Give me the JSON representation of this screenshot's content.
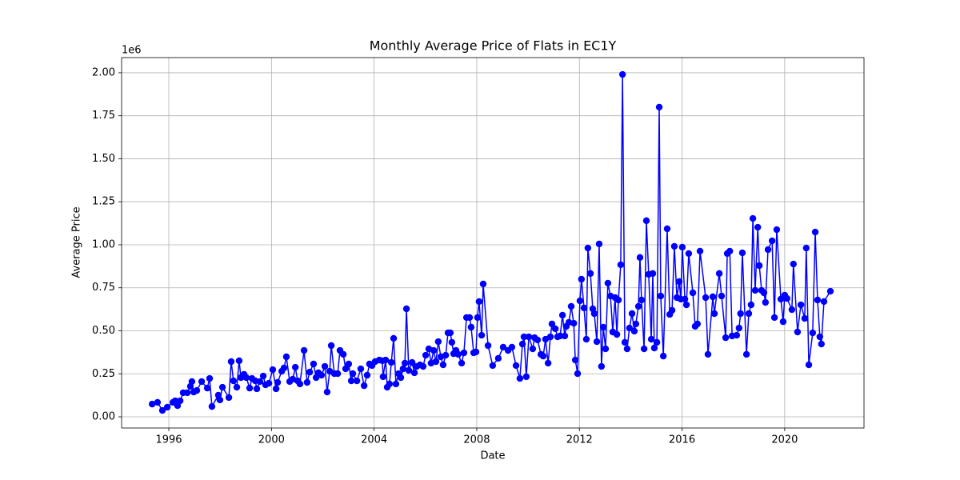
{
  "chart_data": {
    "type": "line",
    "title": "Monthly Average Price of Flats in EC1Y",
    "xlabel": "Date",
    "ylabel": "Average Price",
    "y_offset_label": "1e6",
    "color": "#0000ff",
    "grid": true,
    "xlim": [
      1994.16,
      2023.09
    ],
    "ylim": [
      -0.065,
      2.088
    ],
    "xticks": [
      1996,
      2000,
      2004,
      2008,
      2012,
      2016,
      2020
    ],
    "yticks": [
      {
        "value": 0,
        "label": "0.00"
      },
      0.25,
      {
        "value": 0.5,
        "label": "0.50"
      },
      0.75,
      {
        "value": 1,
        "label": "1.00"
      },
      1.25,
      {
        "value": 1.5,
        "label": "1.50"
      },
      1.75,
      {
        "value": 2,
        "label": "2.00"
      }
    ],
    "x": [
      1995.35,
      1995.56,
      1995.75,
      1995.94,
      1996.16,
      1996.25,
      1996.34,
      1996.44,
      1996.56,
      1996.72,
      1996.84,
      1996.9,
      1996.97,
      1997.09,
      1997.28,
      1997.5,
      1997.59,
      1997.68,
      1997.93,
      1997.99,
      1998.09,
      1998.34,
      1998.43,
      1998.52,
      1998.65,
      1998.74,
      1998.81,
      1998.93,
      1999.02,
      1999.15,
      1999.24,
      1999.37,
      1999.43,
      1999.55,
      1999.68,
      1999.77,
      1999.9,
      2000.05,
      2000.18,
      2000.24,
      2000.4,
      2000.49,
      2000.58,
      2000.71,
      2000.83,
      2000.93,
      2001.02,
      2001.11,
      2001.27,
      2001.39,
      2001.49,
      2001.64,
      2001.74,
      2001.83,
      2001.95,
      2002.08,
      2002.17,
      2002.27,
      2002.33,
      2002.45,
      2002.58,
      2002.67,
      2002.8,
      2002.89,
      2003.01,
      2003.11,
      2003.17,
      2003.33,
      2003.48,
      2003.61,
      2003.73,
      2003.82,
      2003.92,
      2004.04,
      2004.2,
      2004.32,
      2004.35,
      2004.45,
      2004.51,
      2004.6,
      2004.67,
      2004.76,
      2004.85,
      2004.95,
      2005.04,
      2005.13,
      2005.2,
      2005.26,
      2005.35,
      2005.48,
      2005.57,
      2005.66,
      2005.79,
      2005.91,
      2006.01,
      2006.13,
      2006.22,
      2006.32,
      2006.41,
      2006.5,
      2006.6,
      2006.69,
      2006.79,
      2006.88,
      2006.97,
      2007.03,
      2007.1,
      2007.19,
      2007.28,
      2007.41,
      2007.5,
      2007.6,
      2007.72,
      2007.78,
      2007.88,
      2007.97,
      2008.03,
      2008.09,
      2008.19,
      2008.25,
      2008.44,
      2008.62,
      2008.84,
      2009.03,
      2009.22,
      2009.37,
      2009.53,
      2009.68,
      2009.78,
      2009.84,
      2009.93,
      2010.03,
      2010.18,
      2010.25,
      2010.37,
      2010.5,
      2010.59,
      2010.68,
      2010.78,
      2010.87,
      2010.93,
      2011.06,
      2011.15,
      2011.25,
      2011.34,
      2011.43,
      2011.49,
      2011.59,
      2011.68,
      2011.78,
      2011.84,
      2011.93,
      2012.02,
      2012.08,
      2012.18,
      2012.27,
      2012.33,
      2012.43,
      2012.52,
      2012.58,
      2012.68,
      2012.77,
      2012.86,
      2012.93,
      2013.02,
      2013.11,
      2013.21,
      2013.3,
      2013.39,
      2013.46,
      2013.52,
      2013.61,
      2013.68,
      2013.77,
      2013.86,
      2013.95,
      2014.05,
      2014.14,
      2014.2,
      2014.3,
      2014.36,
      2014.42,
      2014.52,
      2014.61,
      2014.7,
      2014.8,
      2014.86,
      2014.92,
      2015.02,
      2015.11,
      2015.17,
      2015.27,
      2015.42,
      2015.52,
      2015.61,
      2015.7,
      2015.8,
      2015.89,
      2015.95,
      2016.01,
      2016.11,
      2016.17,
      2016.26,
      2016.42,
      2016.51,
      2016.6,
      2016.7,
      2016.92,
      2017.01,
      2017.2,
      2017.26,
      2017.45,
      2017.54,
      2017.7,
      2017.76,
      2017.86,
      2017.95,
      2018.13,
      2018.22,
      2018.28,
      2018.35,
      2018.51,
      2018.6,
      2018.69,
      2018.76,
      2018.85,
      2018.95,
      2019.01,
      2019.1,
      2019.19,
      2019.25,
      2019.35,
      2019.51,
      2019.6,
      2019.69,
      2019.85,
      2019.94,
      2020,
      2020.09,
      2020.28,
      2020.34,
      2020.5,
      2020.63,
      2020.78,
      2020.84,
      2020.94,
      2021.09,
      2021.19,
      2021.28,
      2021.37,
      2021.43,
      2021.53,
      2021.78
    ],
    "values": [
      0.074,
      0.084,
      0.037,
      0.056,
      0.084,
      0.093,
      0.065,
      0.093,
      0.14,
      0.14,
      0.177,
      0.205,
      0.144,
      0.153,
      0.205,
      0.167,
      0.223,
      0.06,
      0.126,
      0.098,
      0.172,
      0.112,
      0.321,
      0.209,
      0.172,
      0.326,
      0.228,
      0.247,
      0.228,
      0.167,
      0.223,
      0.209,
      0.163,
      0.205,
      0.237,
      0.186,
      0.195,
      0.274,
      0.163,
      0.2,
      0.265,
      0.284,
      0.349,
      0.205,
      0.219,
      0.288,
      0.209,
      0.191,
      0.386,
      0.2,
      0.26,
      0.307,
      0.228,
      0.256,
      0.242,
      0.293,
      0.144,
      0.265,
      0.414,
      0.251,
      0.251,
      0.386,
      0.363,
      0.279,
      0.307,
      0.209,
      0.251,
      0.209,
      0.279,
      0.181,
      0.242,
      0.307,
      0.298,
      0.321,
      0.33,
      0.326,
      0.233,
      0.33,
      0.172,
      0.191,
      0.316,
      0.456,
      0.191,
      0.251,
      0.228,
      0.279,
      0.312,
      0.628,
      0.27,
      0.316,
      0.256,
      0.293,
      0.302,
      0.293,
      0.358,
      0.395,
      0.312,
      0.386,
      0.321,
      0.437,
      0.349,
      0.302,
      0.358,
      0.488,
      0.488,
      0.433,
      0.367,
      0.386,
      0.363,
      0.312,
      0.372,
      0.577,
      0.577,
      0.521,
      0.372,
      0.377,
      0.577,
      0.67,
      0.474,
      0.772,
      0.414,
      0.298,
      0.34,
      0.405,
      0.386,
      0.405,
      0.298,
      0.223,
      0.423,
      0.465,
      0.233,
      0.465,
      0.395,
      0.46,
      0.447,
      0.363,
      0.353,
      0.451,
      0.312,
      0.465,
      0.54,
      0.512,
      0.465,
      0.47,
      0.591,
      0.47,
      0.526,
      0.549,
      0.642,
      0.544,
      0.33,
      0.251,
      0.674,
      0.8,
      0.633,
      0.451,
      0.981,
      0.833,
      0.628,
      0.6,
      0.437,
      1.005,
      0.293,
      0.521,
      0.395,
      0.777,
      0.702,
      0.493,
      0.693,
      0.479,
      0.679,
      0.884,
      1.99,
      0.433,
      0.395,
      0.516,
      0.6,
      0.498,
      0.54,
      0.642,
      0.926,
      0.679,
      0.395,
      1.14,
      0.828,
      0.451,
      0.833,
      0.4,
      0.433,
      1.8,
      0.702,
      0.353,
      1.093,
      0.595,
      0.619,
      0.991,
      0.693,
      0.786,
      0.684,
      0.986,
      0.684,
      0.651,
      0.949,
      0.721,
      0.526,
      0.54,
      0.963,
      0.693,
      0.363,
      0.698,
      0.6,
      0.833,
      0.702,
      0.46,
      0.949,
      0.963,
      0.47,
      0.474,
      0.516,
      0.6,
      0.953,
      0.363,
      0.6,
      0.651,
      1.153,
      0.735,
      1.102,
      0.879,
      0.735,
      0.721,
      0.665,
      0.972,
      1.023,
      0.577,
      1.088,
      0.684,
      0.553,
      0.707,
      0.688,
      0.623,
      0.888,
      0.493,
      0.651,
      0.572,
      0.981,
      0.302,
      0.488,
      1.074,
      0.679,
      0.465,
      0.423,
      0.67,
      0.73
    ]
  }
}
